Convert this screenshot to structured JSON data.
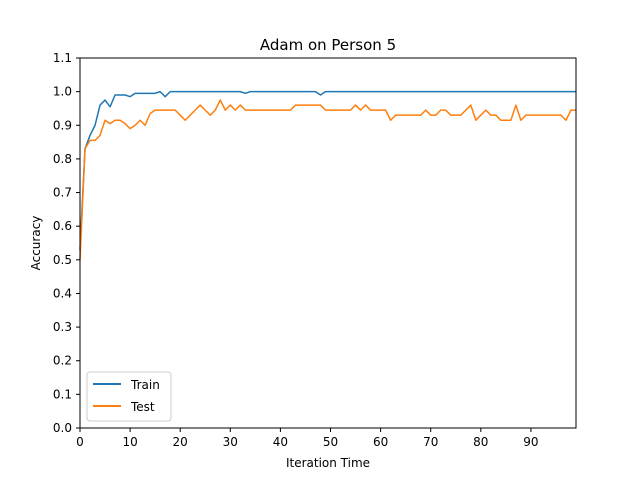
{
  "chart_data": {
    "type": "line",
    "title": "Adam on Person 5",
    "xlabel": "Iteration Time",
    "ylabel": "Accuracy",
    "xlim": [
      0,
      99
    ],
    "ylim": [
      0.0,
      1.1
    ],
    "xticks": [
      0,
      10,
      20,
      30,
      40,
      50,
      60,
      70,
      80,
      90
    ],
    "yticks": [
      "0.0",
      "0.1",
      "0.2",
      "0.3",
      "0.4",
      "0.5",
      "0.6",
      "0.7",
      "0.8",
      "0.9",
      "1.0",
      "1.1"
    ],
    "grid": false,
    "legend_position": "lower-left",
    "series": [
      {
        "name": "Train",
        "color": "#1f77b4",
        "values": [
          0.53,
          0.83,
          0.87,
          0.9,
          0.96,
          0.975,
          0.955,
          0.99,
          0.99,
          0.99,
          0.985,
          0.995,
          0.995,
          0.995,
          0.995,
          0.995,
          1.0,
          0.985,
          1.0,
          1.0,
          1.0,
          1.0,
          1.0,
          1.0,
          1.0,
          1.0,
          1.0,
          1.0,
          1.0,
          1.0,
          1.0,
          1.0,
          1.0,
          0.995,
          1.0,
          1.0,
          1.0,
          1.0,
          1.0,
          1.0,
          1.0,
          1.0,
          1.0,
          1.0,
          1.0,
          1.0,
          1.0,
          1.0,
          0.99,
          1.0,
          1.0,
          1.0,
          1.0,
          1.0,
          1.0,
          1.0,
          1.0,
          1.0,
          1.0,
          1.0,
          1.0,
          1.0,
          1.0,
          1.0,
          1.0,
          1.0,
          1.0,
          1.0,
          1.0,
          1.0,
          1.0,
          1.0,
          1.0,
          1.0,
          1.0,
          1.0,
          1.0,
          1.0,
          1.0,
          1.0,
          1.0,
          1.0,
          1.0,
          1.0,
          1.0,
          1.0,
          1.0,
          1.0,
          1.0,
          1.0,
          1.0,
          1.0,
          1.0,
          1.0,
          1.0,
          1.0,
          1.0,
          1.0,
          1.0,
          1.0
        ]
      },
      {
        "name": "Test",
        "color": "#ff7f0e",
        "values": [
          0.5,
          0.83,
          0.855,
          0.855,
          0.87,
          0.915,
          0.905,
          0.915,
          0.915,
          0.905,
          0.89,
          0.9,
          0.915,
          0.9,
          0.935,
          0.945,
          0.945,
          0.945,
          0.945,
          0.945,
          0.93,
          0.915,
          0.93,
          0.945,
          0.96,
          0.945,
          0.93,
          0.945,
          0.975,
          0.945,
          0.96,
          0.945,
          0.96,
          0.945,
          0.945,
          0.945,
          0.945,
          0.945,
          0.945,
          0.945,
          0.945,
          0.945,
          0.945,
          0.96,
          0.96,
          0.96,
          0.96,
          0.96,
          0.96,
          0.945,
          0.945,
          0.945,
          0.945,
          0.945,
          0.945,
          0.96,
          0.945,
          0.96,
          0.945,
          0.945,
          0.945,
          0.945,
          0.915,
          0.93,
          0.93,
          0.93,
          0.93,
          0.93,
          0.93,
          0.945,
          0.93,
          0.93,
          0.945,
          0.945,
          0.93,
          0.93,
          0.93,
          0.945,
          0.96,
          0.915,
          0.93,
          0.945,
          0.93,
          0.93,
          0.915,
          0.915,
          0.915,
          0.96,
          0.915,
          0.93,
          0.93,
          0.93,
          0.93,
          0.93,
          0.93,
          0.93,
          0.93,
          0.915,
          0.945,
          0.945
        ]
      }
    ]
  }
}
